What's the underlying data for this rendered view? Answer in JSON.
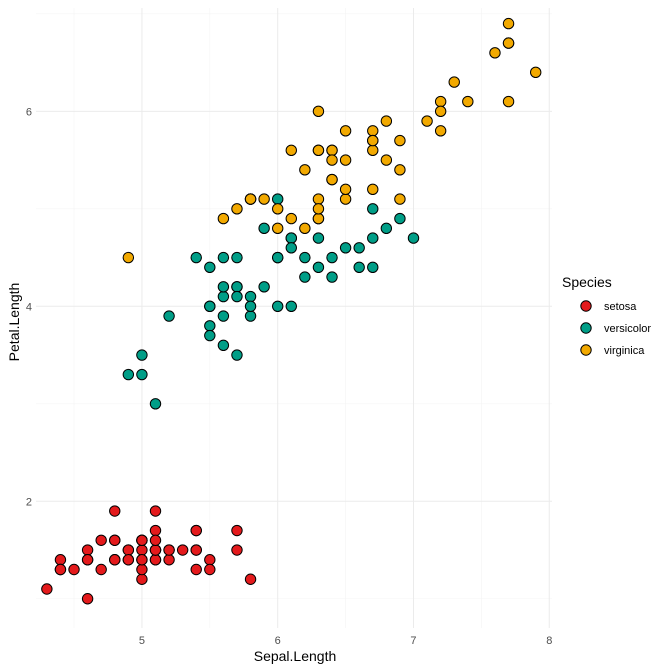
{
  "chart_data": {
    "type": "scatter",
    "title": "",
    "xlabel": "Sepal.Length",
    "ylabel": "Petal.Length",
    "xlim": [
      4.22,
      8.02
    ],
    "ylim": [
      0.7,
      7.06
    ],
    "xticks": [
      5,
      6,
      7,
      8
    ],
    "yticks": [
      2,
      4,
      6
    ],
    "xtick_labels": [
      "5",
      "6",
      "7",
      "8"
    ],
    "ytick_labels": [
      "2",
      "4",
      "6"
    ],
    "grid": true,
    "legend": {
      "title": "Species",
      "position": "right"
    },
    "series": [
      {
        "name": "setosa",
        "color": "#E41A1C",
        "x": [
          5.1,
          4.9,
          4.7,
          4.6,
          5.0,
          5.4,
          4.6,
          5.0,
          4.4,
          4.9,
          5.4,
          4.8,
          4.8,
          4.3,
          5.8,
          5.7,
          5.4,
          5.1,
          5.7,
          5.1,
          5.4,
          5.1,
          4.6,
          5.1,
          4.8,
          5.0,
          5.0,
          5.2,
          5.2,
          4.7,
          4.8,
          5.4,
          5.2,
          5.5,
          4.9,
          5.0,
          5.5,
          4.9,
          4.4,
          5.1,
          5.0,
          4.5,
          4.4,
          5.0,
          5.1,
          4.8,
          5.1,
          4.6,
          5.3,
          5.0
        ],
        "y": [
          1.4,
          1.4,
          1.3,
          1.5,
          1.4,
          1.7,
          1.4,
          1.5,
          1.4,
          1.5,
          1.5,
          1.6,
          1.4,
          1.1,
          1.2,
          1.5,
          1.3,
          1.4,
          1.7,
          1.5,
          1.7,
          1.5,
          1.0,
          1.7,
          1.9,
          1.6,
          1.6,
          1.5,
          1.4,
          1.6,
          1.6,
          1.5,
          1.5,
          1.4,
          1.5,
          1.2,
          1.3,
          1.4,
          1.3,
          1.5,
          1.3,
          1.3,
          1.3,
          1.6,
          1.9,
          1.4,
          1.6,
          1.4,
          1.5,
          1.4
        ]
      },
      {
        "name": "versicolor",
        "color": "#009E87",
        "x": [
          7.0,
          6.4,
          6.9,
          5.5,
          6.5,
          5.7,
          6.3,
          4.9,
          6.6,
          5.2,
          5.0,
          5.9,
          6.0,
          6.1,
          5.6,
          6.7,
          5.6,
          5.8,
          6.2,
          5.6,
          5.9,
          6.1,
          6.3,
          6.1,
          6.4,
          6.6,
          6.8,
          6.7,
          6.0,
          5.7,
          5.5,
          5.5,
          5.8,
          6.0,
          5.4,
          6.0,
          6.7,
          6.3,
          5.6,
          5.5,
          5.5,
          6.1,
          5.8,
          5.0,
          5.6,
          5.7,
          5.7,
          6.2,
          5.1,
          5.7
        ],
        "y": [
          4.7,
          4.5,
          4.9,
          4.0,
          4.6,
          4.5,
          4.7,
          3.3,
          4.6,
          3.9,
          3.5,
          4.2,
          4.0,
          4.7,
          3.6,
          4.4,
          4.5,
          4.1,
          4.5,
          3.9,
          4.8,
          4.0,
          4.9,
          4.7,
          4.3,
          4.4,
          4.8,
          5.0,
          4.5,
          3.5,
          3.8,
          3.7,
          3.9,
          5.1,
          4.5,
          4.5,
          4.7,
          4.4,
          4.1,
          4.0,
          4.4,
          4.6,
          4.0,
          3.3,
          4.2,
          4.2,
          4.2,
          4.3,
          3.0,
          4.1
        ]
      },
      {
        "name": "virginica",
        "color": "#F2A900",
        "x": [
          6.3,
          5.8,
          7.1,
          6.3,
          6.5,
          7.6,
          4.9,
          7.3,
          6.7,
          7.2,
          6.5,
          6.4,
          6.8,
          5.7,
          5.8,
          6.4,
          6.5,
          7.7,
          7.7,
          6.0,
          6.9,
          5.6,
          7.7,
          6.3,
          6.7,
          7.2,
          6.2,
          6.1,
          6.4,
          7.2,
          7.4,
          7.9,
          6.4,
          6.3,
          6.1,
          7.7,
          6.3,
          6.4,
          6.0,
          6.9,
          6.7,
          6.9,
          5.8,
          6.8,
          6.7,
          6.7,
          6.3,
          6.5,
          6.2,
          5.9
        ],
        "y": [
          6.0,
          5.1,
          5.9,
          5.6,
          5.8,
          6.6,
          4.5,
          6.3,
          5.8,
          6.1,
          5.1,
          5.3,
          5.5,
          5.0,
          5.1,
          5.3,
          5.5,
          6.7,
          6.9,
          5.0,
          5.7,
          4.9,
          6.7,
          4.9,
          5.7,
          6.0,
          4.8,
          4.9,
          5.6,
          5.8,
          6.1,
          6.4,
          5.6,
          5.1,
          5.6,
          6.1,
          5.6,
          5.5,
          4.8,
          5.4,
          5.6,
          5.1,
          5.1,
          5.9,
          5.7,
          5.2,
          5.0,
          5.2,
          5.4,
          5.1
        ]
      }
    ]
  }
}
